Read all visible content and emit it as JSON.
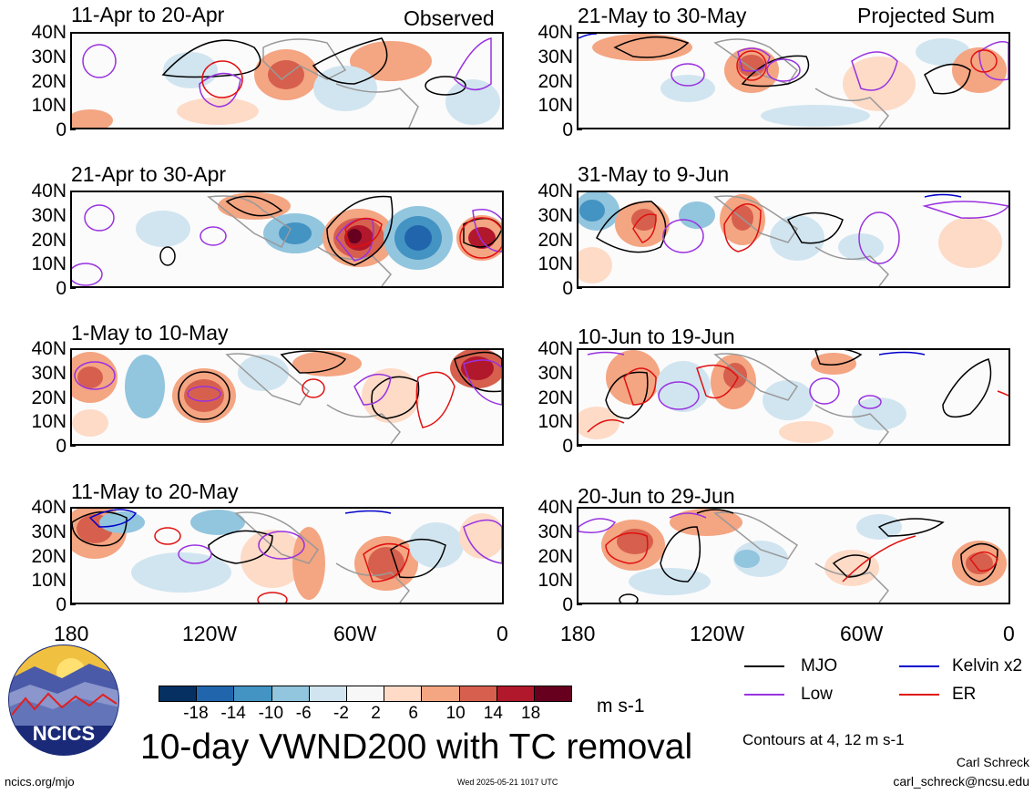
{
  "header": {
    "observed_label": "Observed",
    "projected_label": "Projected Sum"
  },
  "panels": [
    {
      "title": "11-Apr to 20-Apr",
      "column": "observed"
    },
    {
      "title": "21-Apr to 30-Apr",
      "column": "observed"
    },
    {
      "title": "1-May to 10-May",
      "column": "observed"
    },
    {
      "title": "11-May to 20-May",
      "column": "observed"
    },
    {
      "title": "21-May to 30-May",
      "column": "projected"
    },
    {
      "title": "31-May to 9-Jun",
      "column": "projected"
    },
    {
      "title": "10-Jun to 19-Jun",
      "column": "projected"
    },
    {
      "title": "20-Jun to 29-Jun",
      "column": "projected"
    }
  ],
  "lat_labels": [
    "40N",
    "30N",
    "20N",
    "10N",
    "0"
  ],
  "lon_labels": [
    "180",
    "120W",
    "60W",
    "0"
  ],
  "colorbar": {
    "labels": [
      "-18",
      "-14",
      "-10",
      "-6",
      "-2",
      "2",
      "6",
      "10",
      "14",
      "18"
    ],
    "colors": [
      "#053061",
      "#2166ac",
      "#4393c3",
      "#92c5de",
      "#d1e5f0",
      "#f7f7f7",
      "#fddbc7",
      "#f4a582",
      "#d6604d",
      "#b2182b",
      "#67001f"
    ],
    "units": "m s-1"
  },
  "legend": [
    {
      "label": "MJO",
      "color": "#000000"
    },
    {
      "label": "Kelvin x2",
      "color": "#0000cc"
    },
    {
      "label": "Low",
      "color": "#9932e0"
    },
    {
      "label": "ER",
      "color": "#e01010"
    }
  ],
  "contours_note": "Contours at 4, 12 m s-1",
  "main_title": "10-day VWND200 with TC removal",
  "logo_text": "NCICS",
  "footer": {
    "website": "ncics.org/mjo",
    "timestamp": "Wed 2025-05-21 1017 UTC",
    "author": "Carl Schreck",
    "email": "carl_schreck@ncsu.edu"
  }
}
